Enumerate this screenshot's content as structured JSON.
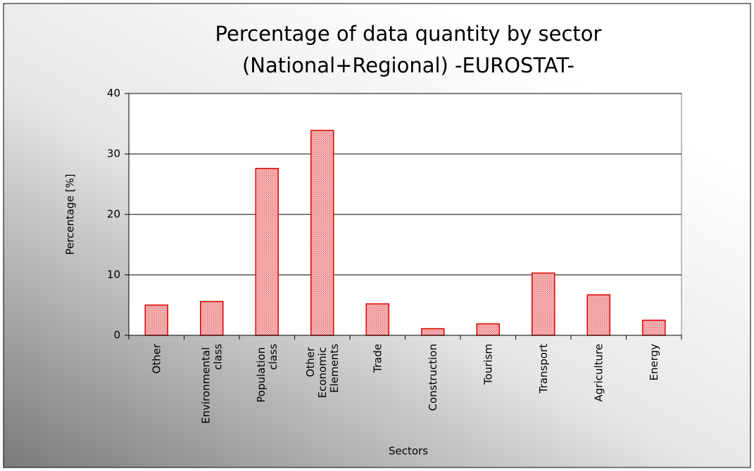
{
  "chart_data": {
    "type": "bar",
    "title": [
      "Percentage of data quantity by sector",
      "(National+Regional) -EUROSTAT-"
    ],
    "x_label": "Sectors",
    "y_label": "Percentage [%]",
    "categories": [
      "Other",
      "Environmental class",
      "Population class",
      "Other Economic Elements",
      "Trade",
      "Construction",
      "Tourism",
      "Transport",
      "Agriculture",
      "Energy"
    ],
    "values": [
      5.0,
      5.6,
      27.6,
      33.9,
      5.2,
      1.1,
      1.9,
      10.3,
      6.7,
      2.5
    ],
    "color": "#f08080",
    "edge_color": "#e00000",
    "ylim": [
      0,
      40
    ],
    "yticks": [
      0,
      10,
      20,
      30,
      40
    ],
    "grid": true
  }
}
